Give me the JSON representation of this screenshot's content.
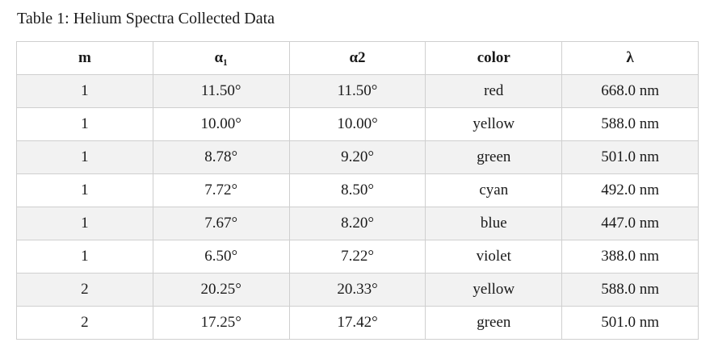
{
  "caption": "Table 1: Helium Spectra Collected Data",
  "columns": [
    "m",
    "α₁",
    "α2",
    "color",
    "λ"
  ],
  "rows": [
    [
      "1",
      "11.50°",
      "11.50°",
      "red",
      "668.0 nm"
    ],
    [
      "1",
      "10.00°",
      "10.00°",
      "yellow",
      "588.0 nm"
    ],
    [
      "1",
      "8.78°",
      "9.20°",
      "green",
      "501.0 nm"
    ],
    [
      "1",
      "7.72°",
      "8.50°",
      "cyan",
      "492.0 nm"
    ],
    [
      "1",
      "7.67°",
      "8.20°",
      "blue",
      "447.0 nm"
    ],
    [
      "1",
      "6.50°",
      "7.22°",
      "violet",
      "388.0 nm"
    ],
    [
      "2",
      "20.25°",
      "20.33°",
      "yellow",
      "588.0 nm"
    ],
    [
      "2",
      "17.25°",
      "17.42°",
      "green",
      "501.0 nm"
    ]
  ]
}
